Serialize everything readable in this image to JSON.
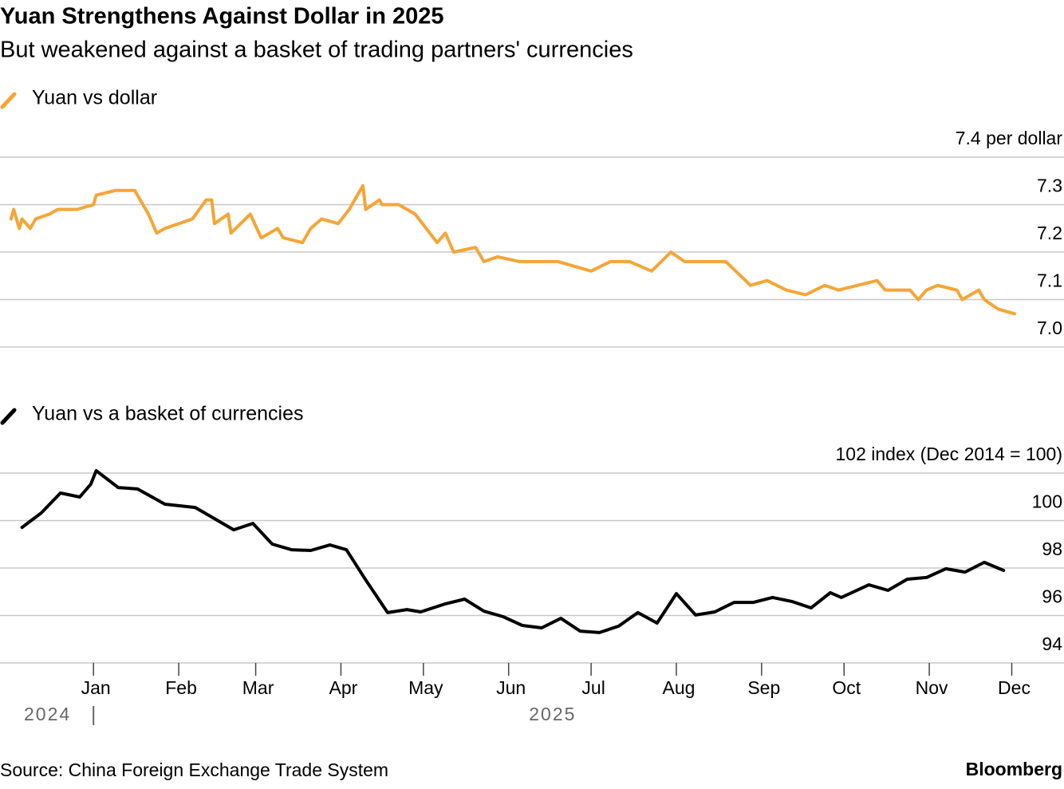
{
  "title": "Yuan Strengthens Against Dollar in 2025",
  "subtitle": "But weakened against a basket of trading partners' currencies",
  "source": "Source: China Foreign Exchange Trade System",
  "brand": "Bloomberg",
  "x_axis": {
    "xlim": [
      "2024-11-28",
      "2025-12-20"
    ],
    "xticks": [
      {
        "value": "2025-01-01",
        "label": "Jan"
      },
      {
        "value": "2025-02-01",
        "label": "Feb"
      },
      {
        "value": "2025-03-01",
        "label": "Mar"
      },
      {
        "value": "2025-04-01",
        "label": "Apr"
      },
      {
        "value": "2025-05-01",
        "label": "May"
      },
      {
        "value": "2025-06-01",
        "label": "Jun"
      },
      {
        "value": "2025-07-01",
        "label": "Jul"
      },
      {
        "value": "2025-08-01",
        "label": "Aug"
      },
      {
        "value": "2025-09-01",
        "label": "Sep"
      },
      {
        "value": "2025-10-01",
        "label": "Oct"
      },
      {
        "value": "2025-11-01",
        "label": "Nov"
      },
      {
        "value": "2025-12-01",
        "label": "Dec"
      }
    ],
    "years": [
      "2024",
      "2025"
    ]
  },
  "chart_data": [
    {
      "type": "line",
      "grid": true,
      "ylim": [
        7.0,
        7.4
      ],
      "yticks": [
        {
          "value": 7.0,
          "label": "7.0"
        },
        7.1,
        7.2,
        7.3,
        {
          "value": 7.4,
          "label": "7.4 per dollar"
        }
      ],
      "x": [
        "2024-12-02",
        "2024-12-03",
        "2024-12-05",
        "2024-12-06",
        "2024-12-09",
        "2024-12-11",
        "2024-12-16",
        "2024-12-19",
        "2024-12-26",
        "2025-01-01",
        "2025-01-02",
        "2025-01-09",
        "2025-01-16",
        "2025-01-21",
        "2025-01-24",
        "2025-01-27",
        "2025-02-06",
        "2025-02-11",
        "2025-02-13",
        "2025-02-14",
        "2025-02-19",
        "2025-02-20",
        "2025-02-27",
        "2025-03-03",
        "2025-03-09",
        "2025-03-11",
        "2025-03-18",
        "2025-03-21",
        "2025-03-25",
        "2025-03-31",
        "2025-04-04",
        "2025-04-09",
        "2025-04-10",
        "2025-04-15",
        "2025-04-16",
        "2025-04-22",
        "2025-04-28",
        "2025-05-06",
        "2025-05-09",
        "2025-05-12",
        "2025-05-20",
        "2025-05-23",
        "2025-05-28",
        "2025-06-05",
        "2025-06-11",
        "2025-06-19",
        "2025-07-01",
        "2025-07-08",
        "2025-07-15",
        "2025-07-23",
        "2025-07-30",
        "2025-08-04",
        "2025-08-10",
        "2025-08-19",
        "2025-08-28",
        "2025-09-03",
        "2025-09-10",
        "2025-09-17",
        "2025-09-24",
        "2025-09-29",
        "2025-10-13",
        "2025-10-16",
        "2025-10-25",
        "2025-10-28",
        "2025-10-31",
        "2025-11-04",
        "2025-11-11",
        "2025-11-13",
        "2025-11-19",
        "2025-11-21",
        "2025-11-26",
        "2025-12-02"
      ],
      "series": [
        {
          "name": "Yuan vs dollar",
          "color": "#f5a536",
          "values": [
            7.27,
            7.29,
            7.25,
            7.27,
            7.25,
            7.27,
            7.28,
            7.29,
            7.29,
            7.3,
            7.32,
            7.33,
            7.33,
            7.28,
            7.24,
            7.25,
            7.27,
            7.31,
            7.31,
            7.26,
            7.28,
            7.24,
            7.28,
            7.23,
            7.25,
            7.23,
            7.22,
            7.25,
            7.27,
            7.26,
            7.29,
            7.34,
            7.29,
            7.31,
            7.3,
            7.3,
            7.28,
            7.22,
            7.24,
            7.2,
            7.21,
            7.18,
            7.19,
            7.18,
            7.18,
            7.18,
            7.16,
            7.18,
            7.18,
            7.16,
            7.2,
            7.18,
            7.18,
            7.18,
            7.13,
            7.14,
            7.12,
            7.11,
            7.13,
            7.12,
            7.14,
            7.12,
            7.12,
            7.1,
            7.12,
            7.13,
            7.12,
            7.1,
            7.12,
            7.1,
            7.08,
            7.07
          ]
        }
      ]
    },
    {
      "type": "line",
      "grid": true,
      "ylim": [
        94,
        102
      ],
      "yticks": [
        94,
        96,
        98,
        100,
        {
          "value": 102,
          "label": "102 index (Dec 2014 = 100)"
        }
      ],
      "x": [
        "2024-12-06",
        "2024-12-13",
        "2024-12-20",
        "2024-12-27",
        "2024-12-31",
        "2025-01-02",
        "2025-01-10",
        "2025-01-17",
        "2025-01-27",
        "2025-02-07",
        "2025-02-14",
        "2025-02-21",
        "2025-02-28",
        "2025-03-07",
        "2025-03-14",
        "2025-03-21",
        "2025-03-28",
        "2025-04-03",
        "2025-04-10",
        "2025-04-18",
        "2025-04-25",
        "2025-04-30",
        "2025-05-09",
        "2025-05-16",
        "2025-05-23",
        "2025-05-30",
        "2025-06-06",
        "2025-06-13",
        "2025-06-20",
        "2025-06-27",
        "2025-07-04",
        "2025-07-11",
        "2025-07-18",
        "2025-07-25",
        "2025-08-01",
        "2025-08-08",
        "2025-08-15",
        "2025-08-22",
        "2025-08-29",
        "2025-09-05",
        "2025-09-12",
        "2025-09-19",
        "2025-09-26",
        "2025-09-30",
        "2025-10-10",
        "2025-10-17",
        "2025-10-24",
        "2025-10-31",
        "2025-11-07",
        "2025-11-14",
        "2025-11-21",
        "2025-11-28"
      ],
      "series": [
        {
          "name": "Yuan vs a basket of currencies",
          "color": "#000000",
          "values": [
            99.71,
            100.32,
            101.16,
            100.99,
            101.53,
            102.1,
            101.39,
            101.33,
            100.69,
            100.55,
            100.08,
            99.61,
            99.88,
            99.01,
            98.77,
            98.74,
            98.97,
            98.77,
            97.5,
            96.12,
            96.25,
            96.15,
            96.49,
            96.69,
            96.18,
            95.95,
            95.58,
            95.48,
            95.88,
            95.34,
            95.28,
            95.55,
            96.12,
            95.68,
            96.92,
            96.02,
            96.15,
            96.55,
            96.55,
            96.76,
            96.59,
            96.32,
            96.96,
            96.76,
            97.29,
            97.06,
            97.53,
            97.6,
            97.97,
            97.83,
            98.24,
            97.9
          ]
        }
      ]
    }
  ]
}
